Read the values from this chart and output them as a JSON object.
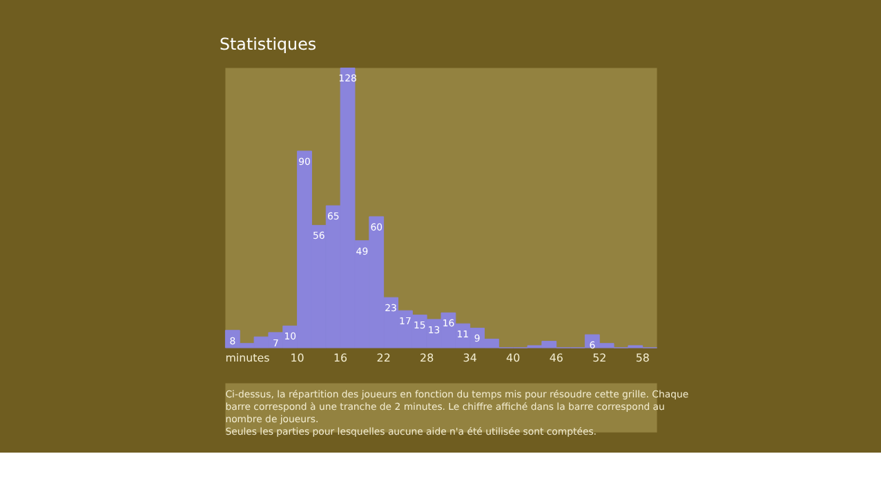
{
  "chart_data": {
    "type": "bar",
    "title": "Statistiques",
    "x": [
      1,
      3,
      5,
      7,
      9,
      11,
      13,
      15,
      17,
      19,
      21,
      23,
      25,
      27,
      29,
      31,
      33,
      35,
      37,
      39,
      41,
      43,
      45,
      47,
      49,
      51,
      53,
      55,
      57,
      59
    ],
    "values": [
      8,
      2,
      5,
      7,
      10,
      90,
      56,
      65,
      128,
      49,
      60,
      23,
      17,
      15,
      13,
      16,
      11,
      9,
      4,
      0,
      0,
      1,
      3,
      0,
      0,
      6,
      2,
      0,
      1,
      0
    ],
    "value_labels": [
      "8",
      null,
      null,
      "7",
      "10",
      "90",
      "56",
      "65",
      "128",
      "49",
      "60",
      "23",
      "17",
      "15",
      "13",
      "16",
      "11",
      "9",
      null,
      null,
      null,
      null,
      null,
      null,
      null,
      "6",
      null,
      null,
      null,
      null
    ],
    "color": "#8a84dc",
    "xlim": [
      0,
      60
    ],
    "xlabel": "minutes",
    "xticks": [
      10,
      16,
      22,
      28,
      34,
      40,
      46,
      52,
      58
    ],
    "tick_labels": "x",
    "grid": false,
    "annotations": [
      "Ci-dessus, la répartition des joueurs en fonction du temps mis pour résoudre cette grille. Chaque",
      "barre correspond à une tranche de 2 minutes. Le chiffre affiché dans la barre correspond au",
      "nombre de joueurs.",
      "Seules les parties pour lesquelles aucune aide n'a été utilisée sont comptées."
    ]
  }
}
